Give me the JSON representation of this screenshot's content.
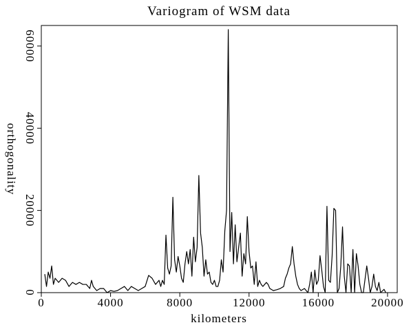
{
  "chart_data": {
    "type": "line",
    "title": "Variogram of WSM data",
    "x_label": "kilometers",
    "y_label": "orthogonality",
    "xlim": [
      0,
      20560
    ],
    "ylim": [
      0,
      65000
    ],
    "xticks": [
      0,
      4000,
      8000,
      12000,
      16000,
      20000
    ],
    "yticks": [
      0,
      20000,
      40000,
      60000
    ],
    "x": [
      200,
      300,
      400,
      500,
      600,
      700,
      800,
      1000,
      1200,
      1400,
      1600,
      1800,
      2000,
      2200,
      2400,
      2600,
      2800,
      2900,
      3000,
      3200,
      3400,
      3600,
      3800,
      4000,
      4200,
      4400,
      4600,
      4800,
      5000,
      5200,
      5400,
      5600,
      5800,
      6000,
      6200,
      6400,
      6600,
      6800,
      6900,
      7000,
      7100,
      7200,
      7300,
      7400,
      7500,
      7600,
      7700,
      7800,
      7900,
      8000,
      8100,
      8200,
      8300,
      8400,
      8500,
      8600,
      8700,
      8800,
      8900,
      9000,
      9100,
      9200,
      9300,
      9400,
      9500,
      9600,
      9700,
      9800,
      9900,
      10000,
      10100,
      10200,
      10300,
      10400,
      10500,
      10600,
      10700,
      10800,
      10900,
      11000,
      11100,
      11200,
      11300,
      11400,
      11500,
      11600,
      11700,
      11800,
      11900,
      12000,
      12100,
      12200,
      12300,
      12400,
      12500,
      12600,
      12700,
      12800,
      12900,
      13000,
      13100,
      13200,
      13400,
      13600,
      13800,
      14000,
      14100,
      14200,
      14300,
      14400,
      14500,
      14600,
      14700,
      14800,
      14900,
      15000,
      15200,
      15400,
      15500,
      15600,
      15700,
      15800,
      15900,
      16000,
      16100,
      16200,
      16300,
      16400,
      16500,
      16600,
      16700,
      16800,
      16900,
      17000,
      17100,
      17200,
      17300,
      17400,
      17500,
      17600,
      17700,
      17800,
      17900,
      18000,
      18100,
      18200,
      18300,
      18400,
      18500,
      18600,
      18800,
      18900,
      19000,
      19100,
      19200,
      19300,
      19400,
      19500,
      19600,
      19800,
      19900
    ],
    "series": [
      {
        "name": "variogram",
        "color": "#000000",
        "values": [
          4500,
          1500,
          5000,
          3500,
          6500,
          2000,
          3500,
          2500,
          3500,
          3000,
          1500,
          2500,
          2000,
          2500,
          2000,
          2000,
          1000,
          3000,
          1500,
          500,
          1000,
          1000,
          0,
          500,
          300,
          500,
          1000,
          1500,
          500,
          1500,
          1000,
          500,
          1000,
          1500,
          4200,
          3500,
          2000,
          3000,
          1500,
          3000,
          2000,
          14000,
          6000,
          4500,
          6500,
          23200,
          8000,
          5000,
          8800,
          6500,
          3500,
          2500,
          7000,
          10000,
          7000,
          10500,
          4000,
          13500,
          7500,
          11000,
          28500,
          14500,
          11000,
          4000,
          8000,
          4500,
          5000,
          2500,
          2000,
          3000,
          1500,
          1500,
          3000,
          8000,
          5000,
          15000,
          20000,
          64000,
          10000,
          19500,
          7000,
          16500,
          7500,
          11000,
          14500,
          4000,
          9500,
          7000,
          18500,
          10000,
          6000,
          6500,
          2000,
          7500,
          1500,
          3000,
          2000,
          1500,
          2000,
          2500,
          2000,
          1000,
          500,
          700,
          1000,
          1500,
          3500,
          4500,
          6000,
          7000,
          11200,
          7000,
          4000,
          2000,
          1000,
          500,
          1000,
          0,
          2000,
          5000,
          0,
          5500,
          2000,
          3000,
          9000,
          5500,
          1500,
          0,
          21000,
          3000,
          2500,
          9000,
          20500,
          20000,
          0,
          1000,
          6500,
          16000,
          4000,
          0,
          7000,
          6500,
          0,
          10500,
          0,
          9500,
          6500,
          2000,
          0,
          0,
          6500,
          3500,
          0,
          1500,
          4500,
          1500,
          500,
          2500,
          0,
          800,
          0
        ]
      }
    ]
  }
}
